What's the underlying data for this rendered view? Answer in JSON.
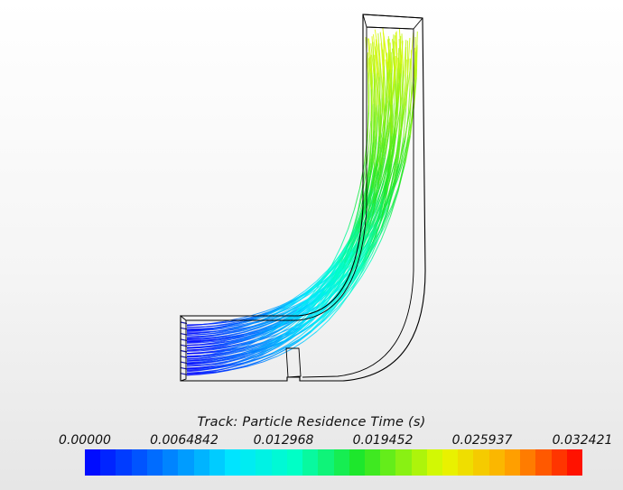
{
  "legend": {
    "title": "Track: Particle Residence Time (s)",
    "min": 0,
    "max": 0.032421,
    "tick_labels": [
      "0.00000",
      "0.0064842",
      "0.012968",
      "0.019452",
      "0.025937",
      "0.032421"
    ],
    "colormap": "blue-cyan-green-yellow-red",
    "segments": 32
  }
}
